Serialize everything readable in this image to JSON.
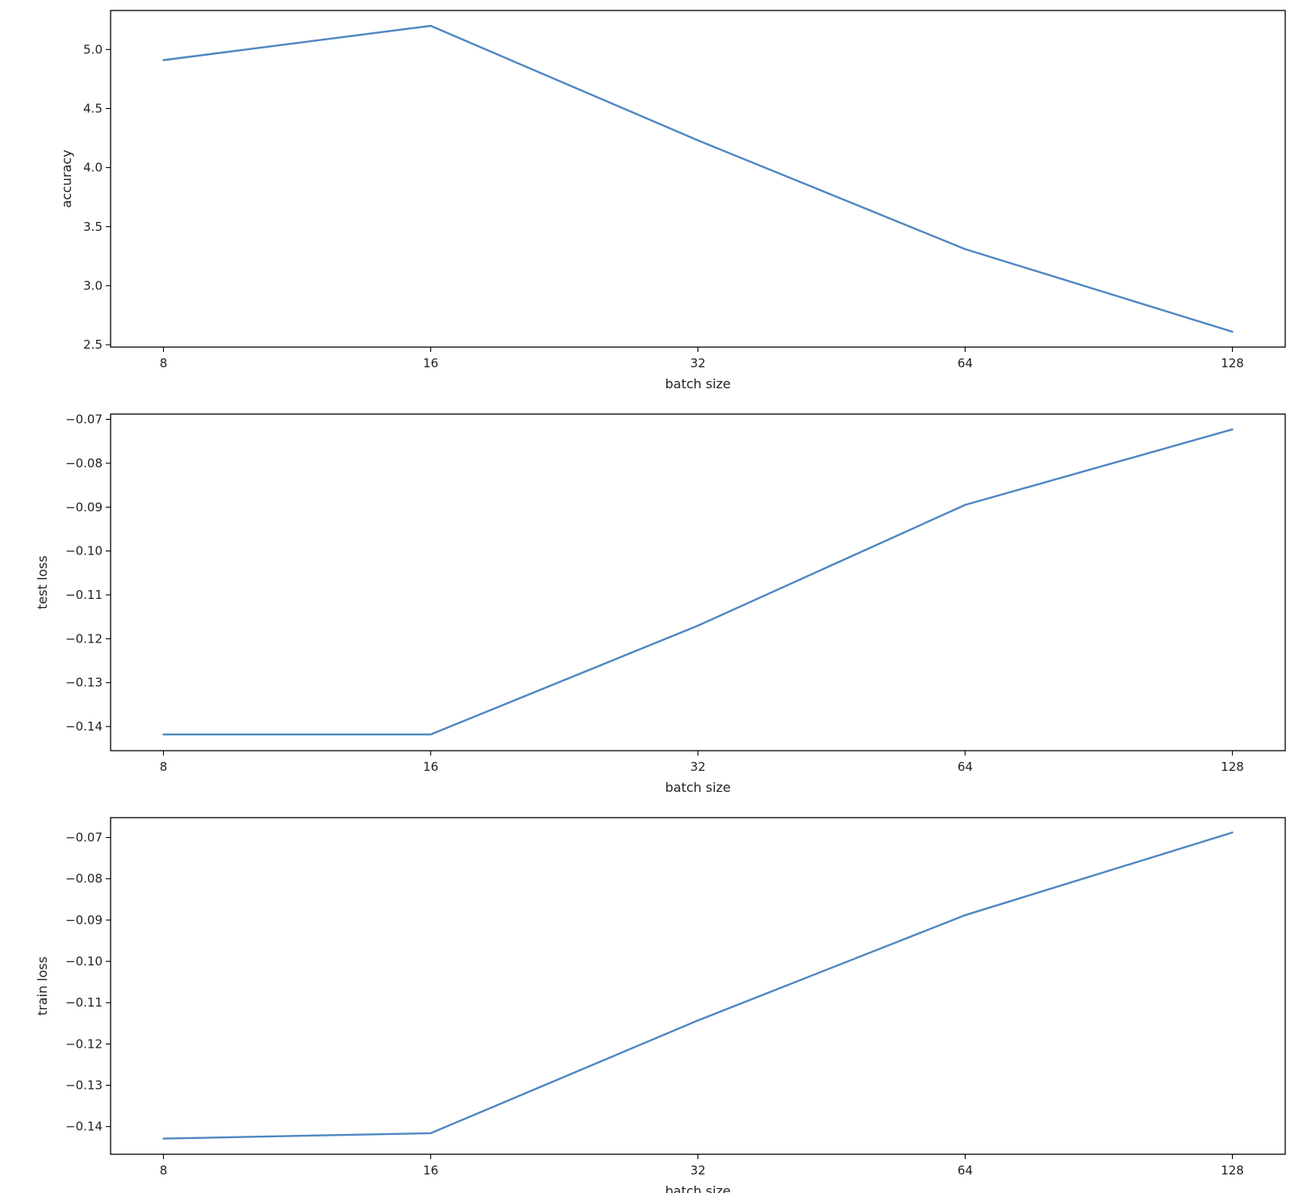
{
  "colors": {
    "line": "#4f87c2",
    "axes": "#000000",
    "text": "#222222",
    "background": "#ffffff"
  },
  "chart_data": [
    {
      "type": "line",
      "xlabel": "batch size",
      "ylabel": "accuracy",
      "x": [
        8,
        16,
        32,
        64,
        128
      ],
      "x_tick_labels": [
        "8",
        "16",
        "32",
        "64",
        "128"
      ],
      "x_scale": "categorical",
      "y_ticks": [
        2.5,
        3.0,
        3.5,
        4.0,
        4.5,
        5.0
      ],
      "y_tick_labels": [
        "2.5",
        "3.0",
        "3.5",
        "4.0",
        "4.5",
        "5.0"
      ],
      "ylim": [
        2.48,
        5.33
      ],
      "series": [
        {
          "values": [
            4.91,
            5.2,
            4.23,
            3.31,
            2.61
          ]
        }
      ],
      "grid": false,
      "legend": "none"
    },
    {
      "type": "line",
      "xlabel": "batch size",
      "ylabel": "test loss",
      "x": [
        8,
        16,
        32,
        64,
        128
      ],
      "x_tick_labels": [
        "8",
        "16",
        "32",
        "64",
        "128"
      ],
      "x_scale": "categorical",
      "y_ticks": [
        -0.14,
        -0.13,
        -0.12,
        -0.11,
        -0.1,
        -0.09,
        -0.08,
        -0.07
      ],
      "y_tick_labels": [
        "−0.14",
        "−0.13",
        "−0.12",
        "−0.11",
        "−0.10",
        "−0.09",
        "−0.08",
        "−0.07"
      ],
      "ylim": [
        -0.1455,
        -0.0688
      ],
      "series": [
        {
          "values": [
            -0.1418,
            -0.1418,
            -0.117,
            -0.0895,
            -0.0723
          ]
        }
      ],
      "grid": false,
      "legend": "none"
    },
    {
      "type": "line",
      "xlabel": "batch size",
      "ylabel": "train loss",
      "x": [
        8,
        16,
        32,
        64,
        128
      ],
      "x_tick_labels": [
        "8",
        "16",
        "32",
        "64",
        "128"
      ],
      "x_scale": "categorical",
      "y_ticks": [
        -0.14,
        -0.13,
        -0.12,
        -0.11,
        -0.1,
        -0.09,
        -0.08,
        -0.07
      ],
      "y_tick_labels": [
        "−0.14",
        "−0.13",
        "−0.12",
        "−0.11",
        "−0.10",
        "−0.09",
        "−0.08",
        "−0.07"
      ],
      "ylim": [
        -0.1467,
        -0.0652
      ],
      "series": [
        {
          "values": [
            -0.1429,
            -0.1416,
            -0.1143,
            -0.0888,
            -0.0688
          ]
        }
      ],
      "grid": false,
      "legend": "none"
    }
  ]
}
